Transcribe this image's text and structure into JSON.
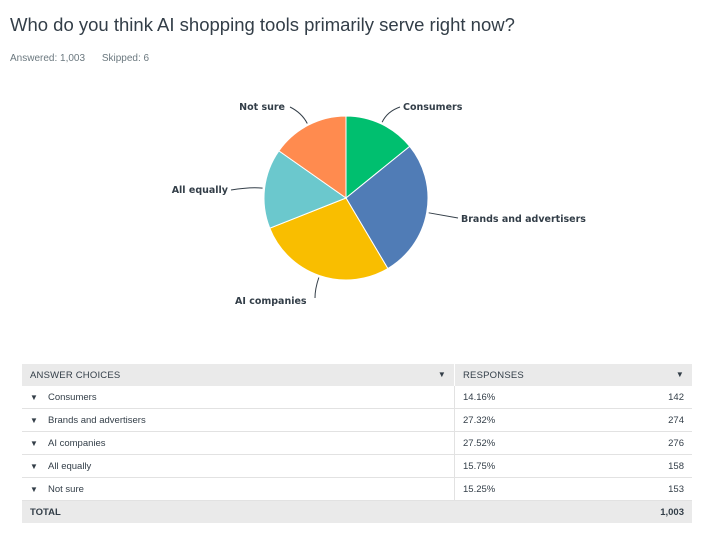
{
  "question": "Who do you think AI shopping tools primarily serve right now?",
  "answered_label": "Answered: 1,003",
  "skipped_label": "Skipped: 6",
  "table": {
    "header_choices": "ANSWER CHOICES",
    "header_responses": "RESPONSES",
    "total_label": "TOTAL",
    "total_value": "1,003",
    "rows": [
      {
        "choice": "Consumers",
        "pct": "14.16%",
        "count": "142"
      },
      {
        "choice": "Brands and advertisers",
        "pct": "27.32%",
        "count": "274"
      },
      {
        "choice": "AI companies",
        "pct": "27.52%",
        "count": "276"
      },
      {
        "choice": "All equally",
        "pct": "15.75%",
        "count": "158"
      },
      {
        "choice": "Not sure",
        "pct": "15.25%",
        "count": "153"
      }
    ]
  },
  "chart_data": {
    "type": "pie",
    "categories": [
      "Consumers",
      "Brands and advertisers",
      "AI companies",
      "All equally",
      "Not sure"
    ],
    "values": [
      14.16,
      27.32,
      27.52,
      15.75,
      15.25
    ],
    "colors": [
      "#00bf6f",
      "#507cb6",
      "#f9be00",
      "#6bc8cd",
      "#ff8b4f"
    ],
    "labels_outside": true
  }
}
